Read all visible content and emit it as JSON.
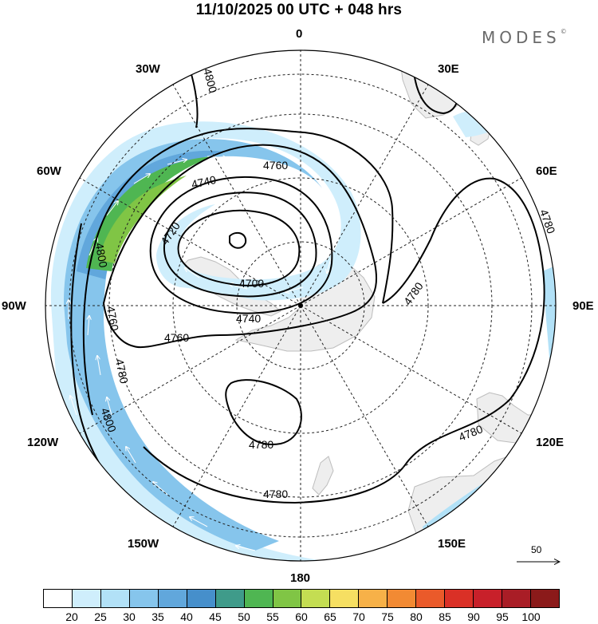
{
  "title": "11/10/2025  00 UTC  + 048 hrs",
  "brand": "MODES",
  "brand_mark": "©",
  "map": {
    "projection": "south polar stereographic",
    "longitude_labels": {
      "top": "0",
      "top_right_30": "30E",
      "top_left_30": "30W",
      "right_60": "60E",
      "left_60": "60W",
      "right": "90E",
      "left": "90W",
      "bottom_right_120": "120E",
      "bottom_left_120": "120W",
      "bottom_right_150": "150E",
      "bottom_left_150": "150W",
      "bottom": "180"
    },
    "contour_labels": {
      "c4800_top": "4800",
      "c4760_upper": "4760",
      "c4740_upper": "4740",
      "c4720": "4720",
      "c4700": "4700",
      "c4740_lower": "4740",
      "c4760_lower": "4760",
      "c4760_left": "4760",
      "c4800_left_upper": "4800",
      "c4780_left": "4780",
      "c4800_left_lower": "4800",
      "c4780_center": "4780",
      "c4780_bottom": "4780",
      "c4780_right_upper": "4780",
      "c4780_right": "4780",
      "c4780_lower_right": "4780"
    },
    "reference_vector": "50",
    "colors": {
      "land": "#eeeeee",
      "coast": "#bdbdbd",
      "grid": "#222222",
      "contour": "#000000"
    }
  },
  "colorbar": {
    "labels": [
      "20",
      "25",
      "30",
      "35",
      "40",
      "45",
      "50",
      "55",
      "60",
      "65",
      "70",
      "75",
      "80",
      "85",
      "90",
      "95",
      "100"
    ],
    "colors": [
      "#ffffff",
      "#cfeefc",
      "#b2e1f7",
      "#86c5ec",
      "#61a7dc",
      "#468fcb",
      "#3f9b8a",
      "#4fb652",
      "#80c545",
      "#c4dd52",
      "#f6df62",
      "#f7b148",
      "#f28a33",
      "#ea5a2a",
      "#da3026",
      "#c8202a",
      "#a91d26",
      "#8b1a1a"
    ]
  }
}
